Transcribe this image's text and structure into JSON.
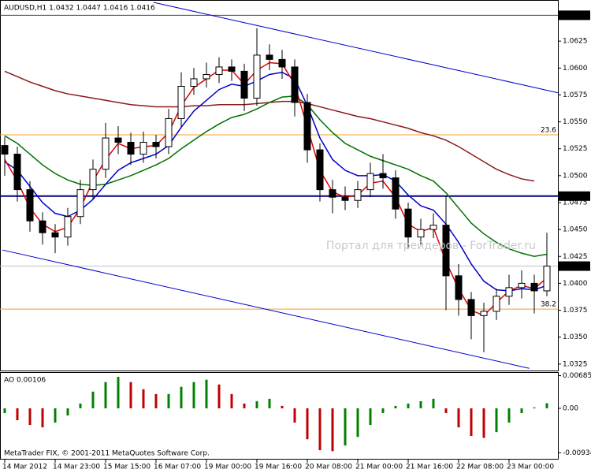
{
  "chart_data": [
    {
      "type": "candlestick",
      "title": "AUDUSD,H1  1.0432 1.0447 1.0416 1.0416",
      "annotation": "Портал для трейдеров - ForTrader.ru",
      "categories": [
        "14 Mar 2012",
        null,
        null,
        null,
        "14 Mar 23:00",
        null,
        null,
        null,
        "15 Mar 15:00",
        null,
        null,
        null,
        "16 Mar 07:00",
        null,
        null,
        null,
        "19 Mar 00:00",
        null,
        null,
        null,
        "19 Mar 16:00",
        null,
        null,
        null,
        "20 Mar 08:00",
        null,
        null,
        null,
        "21 Mar 00:00",
        null,
        null,
        null,
        "21 Mar 16:00",
        null,
        null,
        null,
        "22 Mar 08:00",
        null,
        null,
        null,
        "23 Mar 00:00",
        null,
        null,
        null
      ],
      "open": [
        1.0528,
        1.052,
        1.0487,
        1.0458,
        1.0447,
        1.0443,
        1.0462,
        1.0487,
        1.0506,
        1.0535,
        1.0531,
        1.052,
        1.0531,
        1.0527,
        1.0553,
        1.0583,
        1.059,
        1.0594,
        1.0601,
        1.0597,
        1.0572,
        1.0612,
        1.0608,
        1.0601,
        1.0568,
        1.0524,
        1.0487,
        1.048,
        1.0477,
        1.0487,
        1.0502,
        1.0498,
        1.0469,
        1.0443,
        1.045,
        1.0454,
        1.0407,
        1.0385,
        1.037,
        1.0374,
        1.0388,
        1.0396,
        1.04,
        1.0393
      ],
      "high": [
        1.0536,
        1.0527,
        1.0495,
        1.0466,
        1.0455,
        1.047,
        1.0496,
        1.0515,
        1.0549,
        1.0546,
        1.054,
        1.0541,
        1.0538,
        1.0562,
        1.0596,
        1.06,
        1.0605,
        1.061,
        1.0608,
        1.0604,
        1.0637,
        1.0622,
        1.0617,
        1.0608,
        1.0576,
        1.053,
        1.0496,
        1.049,
        1.0495,
        1.0512,
        1.052,
        1.0505,
        1.0475,
        1.046,
        1.0465,
        1.0481,
        1.0418,
        1.0392,
        1.0382,
        1.0395,
        1.0408,
        1.0412,
        1.0408,
        1.0447
      ],
      "low": [
        1.05,
        1.0476,
        1.0448,
        1.0436,
        1.0428,
        1.0435,
        1.0455,
        1.0478,
        1.0498,
        1.052,
        1.051,
        1.0512,
        1.0516,
        1.052,
        1.0545,
        1.0575,
        1.0582,
        1.0586,
        1.0588,
        1.056,
        1.0565,
        1.0598,
        1.059,
        1.0555,
        1.0512,
        1.0476,
        1.0465,
        1.0468,
        1.047,
        1.048,
        1.0488,
        1.046,
        1.0432,
        1.0436,
        1.0442,
        1.0375,
        1.037,
        1.0348,
        1.0336,
        1.0366,
        1.038,
        1.0386,
        1.0372,
        1.0388
      ],
      "close": [
        1.052,
        1.0487,
        1.0458,
        1.0447,
        1.0443,
        1.0462,
        1.0487,
        1.0506,
        1.0535,
        1.0531,
        1.052,
        1.0531,
        1.0527,
        1.0553,
        1.0583,
        1.059,
        1.0594,
        1.0601,
        1.0597,
        1.0572,
        1.0612,
        1.0608,
        1.0601,
        1.0568,
        1.0524,
        1.0487,
        1.048,
        1.0477,
        1.0487,
        1.0502,
        1.0498,
        1.0469,
        1.0443,
        1.045,
        1.0454,
        1.0407,
        1.0385,
        1.037,
        1.0374,
        1.0388,
        1.0396,
        1.04,
        1.0393,
        1.0416
      ],
      "up_color": "#ffffff",
      "down_color": "#000000",
      "series": [
        {
          "color": "#8b1a1a",
          "values": [
            1.0597,
            1.0592,
            1.0587,
            1.0583,
            1.0579,
            1.0576,
            1.0574,
            1.0572,
            1.057,
            1.0568,
            1.0566,
            1.0565,
            1.0564,
            1.0564,
            1.0564,
            1.0565,
            1.0565,
            1.0566,
            1.0566,
            1.0566,
            1.0567,
            1.0568,
            1.0569,
            1.0569,
            1.0567,
            1.0564,
            1.0561,
            1.0558,
            1.0555,
            1.0553,
            1.055,
            1.0547,
            1.0544,
            1.054,
            1.0537,
            1.0533,
            1.0527,
            1.052,
            1.0513,
            1.0506,
            1.0501,
            1.0497,
            1.0495,
            null
          ]
        },
        {
          "color": "#007000",
          "values": [
            1.0537,
            1.053,
            1.052,
            1.051,
            1.0502,
            1.0496,
            1.0492,
            1.0491,
            1.0492,
            1.0496,
            1.05,
            1.0505,
            1.051,
            1.0516,
            1.0525,
            1.0533,
            1.0541,
            1.0548,
            1.0554,
            1.0557,
            1.0562,
            1.0568,
            1.0573,
            1.0574,
            1.0566,
            1.0552,
            1.054,
            1.053,
            1.0524,
            1.0518,
            1.0514,
            1.051,
            1.0506,
            1.05,
            1.0495,
            1.0484,
            1.047,
            1.0456,
            1.0446,
            1.0438,
            1.0432,
            1.0428,
            1.0425,
            1.0427
          ]
        },
        {
          "color": "#0000cc",
          "values": [
            1.0513,
            1.0505,
            1.049,
            1.0475,
            1.0465,
            1.0462,
            1.0468,
            1.0478,
            1.0492,
            1.0505,
            1.0512,
            1.0516,
            1.052,
            1.0528,
            1.0545,
            1.056,
            1.057,
            1.058,
            1.0585,
            1.0583,
            1.0588,
            1.0594,
            1.0596,
            1.059,
            1.0565,
            1.0535,
            1.0515,
            1.0505,
            1.05,
            1.05,
            1.0501,
            1.0495,
            1.0482,
            1.0472,
            1.0468,
            1.0455,
            1.0438,
            1.0418,
            1.0402,
            1.0394,
            1.0393,
            1.0395,
            1.0394,
            1.0398
          ]
        },
        {
          "color": "#e00000",
          "values": [
            1.0515,
            1.0495,
            1.047,
            1.0455,
            1.0448,
            1.0452,
            1.047,
            1.0495,
            1.0515,
            1.053,
            1.0525,
            1.0527,
            1.0528,
            1.054,
            1.0565,
            1.0582,
            1.059,
            1.0598,
            1.0598,
            1.0585,
            1.0598,
            1.0605,
            1.0604,
            1.0585,
            1.0545,
            1.0505,
            1.0485,
            1.048,
            1.0482,
            1.0493,
            1.0495,
            1.048,
            1.0455,
            1.0448,
            1.0452,
            1.042,
            1.0395,
            1.0375,
            1.037,
            1.0382,
            1.0393,
            1.0398,
            1.0395,
            1.0405
          ]
        }
      ],
      "trendlines": [
        {
          "color": "#0000cc",
          "x": [
            11.8,
            43.9
          ],
          "y": [
            1.0661,
            1.0577
          ]
        },
        {
          "color": "#0000cc",
          "x": [
            -0.2,
            41.6
          ],
          "y": [
            1.0431,
            1.0321
          ]
        }
      ],
      "levels": [
        {
          "value": 1.0538,
          "label": "23.6",
          "color": "#f0a030"
        },
        {
          "value": 1.0376,
          "label": "38.2",
          "color": "#f0a030"
        }
      ],
      "hlines": [
        {
          "value": 1.0649,
          "color": "#404040",
          "width": 1
        },
        {
          "value": 1.0481,
          "color": "#000080",
          "width": 2
        },
        {
          "value": 1.0416,
          "color": "#c0c0c0",
          "width": 1
        }
      ],
      "ylim": [
        1.0319,
        1.0661
      ],
      "yticks": [
        1.0625,
        {
          "value": 1.06,
          "label": "1.0600"
        },
        1.0575,
        {
          "value": 1.055,
          "label": "1.0550"
        },
        1.0525,
        {
          "value": 1.05,
          "label": "1.0500"
        },
        1.0475,
        {
          "value": 1.045,
          "label": "1.0450"
        },
        1.0425,
        {
          "value": 1.04,
          "label": "1.0400"
        },
        1.0375,
        {
          "value": 1.035,
          "label": "1.0350"
        },
        1.0325
      ]
    },
    {
      "type": "bar",
      "title": "AO 0.00106",
      "annotation": "MetaTrader FIX, © 2001-2011 MetaQuotes Software Corp.",
      "values": [
        -0.001,
        -0.0025,
        -0.0035,
        -0.004,
        -0.003,
        -0.0015,
        0.001,
        0.0035,
        0.0055,
        0.0066,
        0.0055,
        0.004,
        0.003,
        0.003,
        0.0045,
        0.0055,
        0.006,
        0.005,
        0.003,
        0.001,
        0.0015,
        0.002,
        0.0005,
        -0.003,
        -0.0065,
        -0.0088,
        -0.009,
        -0.0078,
        -0.006,
        -0.0035,
        -0.001,
        0.0005,
        0.001,
        0.0015,
        0.002,
        -0.001,
        -0.004,
        -0.0058,
        -0.0062,
        -0.005,
        -0.003,
        -0.001,
        0.0002,
        0.00106
      ],
      "up_color": "#008000",
      "down_color": "#c00000",
      "ylim": [
        -0.0106,
        0.0076
      ],
      "yticks": [
        0.00685,
        {
          "value": 0,
          "label": "0.00"
        },
        -0.00934
      ]
    }
  ]
}
